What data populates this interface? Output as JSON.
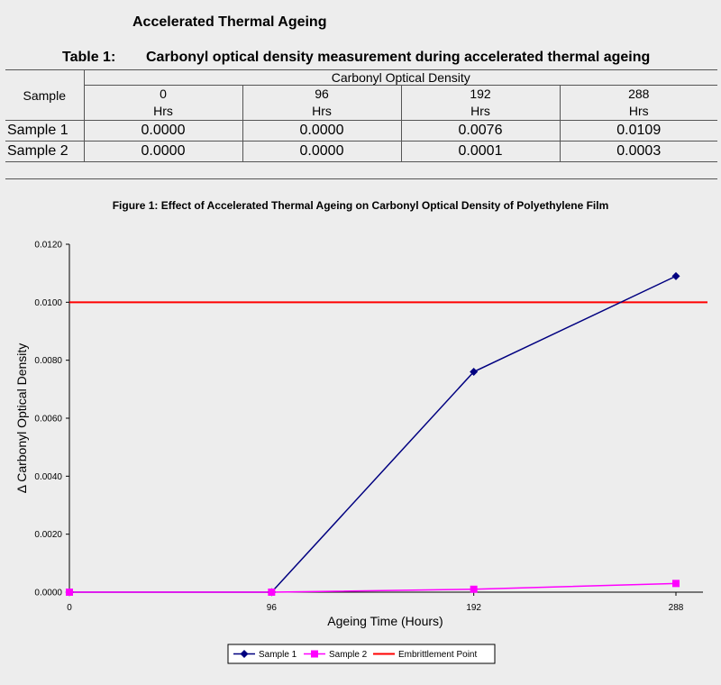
{
  "page": {
    "heading": "Accelerated Thermal Ageing"
  },
  "table": {
    "caption_number": "Table 1:",
    "caption_text": "Carbonyl optical density measurement during accelerated thermal ageing",
    "sample_header": "Sample",
    "group_header": "Carbonyl Optical Density",
    "time_headers": [
      {
        "value": "0",
        "unit": "Hrs"
      },
      {
        "value": "96",
        "unit": "Hrs"
      },
      {
        "value": "192",
        "unit": "Hrs"
      },
      {
        "value": "288",
        "unit": "Hrs"
      }
    ],
    "rows": [
      {
        "label": "Sample 1",
        "values": [
          "0.0000",
          "0.0000",
          "0.0076",
          "0.0109"
        ]
      },
      {
        "label": "Sample 2",
        "values": [
          "0.0000",
          "0.0000",
          "0.0001",
          "0.0003"
        ]
      }
    ]
  },
  "figure": {
    "title": "Figure 1: Effect of Accelerated Thermal Ageing on Carbonyl Optical Density of Polyethylene Film"
  },
  "chart_data": {
    "type": "line",
    "title": "Figure 1: Effect of Accelerated Thermal Ageing on Carbonyl Optical Density of Polyethylene Film",
    "xlabel": "Ageing Time (Hours)",
    "ylabel": "Δ Carbonyl Optical Density",
    "x": [
      0,
      96,
      192,
      288
    ],
    "x_tick_labels": [
      "0",
      "96",
      "192",
      "288"
    ],
    "y_tick_labels": [
      "0.0000",
      "0.0020",
      "0.0040",
      "0.0060",
      "0.0080",
      "0.0100",
      "0.0120"
    ],
    "ylim": [
      0,
      0.012
    ],
    "grid": false,
    "legend_position": "bottom",
    "series": [
      {
        "name": "Sample 1",
        "values": [
          0.0,
          0.0,
          0.0076,
          0.0109
        ],
        "color": "#000080",
        "marker": "diamond"
      },
      {
        "name": "Sample 2",
        "values": [
          0.0,
          0.0,
          0.0001,
          0.0003
        ],
        "color": "#ff00ff",
        "marker": "square"
      }
    ],
    "reference_lines": [
      {
        "name": "Embrittlement Point",
        "y": 0.01,
        "color": "#ff0000"
      }
    ]
  }
}
